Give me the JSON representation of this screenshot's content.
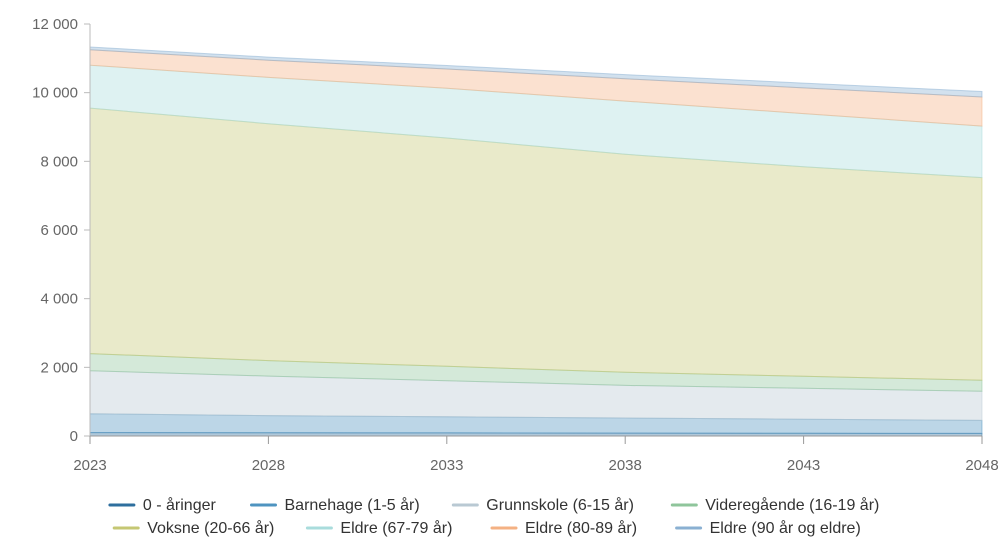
{
  "chart_data": {
    "type": "area",
    "stacked": true,
    "x": [
      2023,
      2028,
      2033,
      2038,
      2043,
      2048
    ],
    "ylim": [
      0,
      12000
    ],
    "yticks": [
      0,
      2000,
      4000,
      6000,
      8000,
      10000,
      12000
    ],
    "ytick_labels": [
      "0",
      "2 000",
      "4 000",
      "6 000",
      "8 000",
      "10 000",
      "12 000"
    ],
    "xtick_labels": [
      "2023",
      "2028",
      "2033",
      "2038",
      "2043",
      "2048"
    ],
    "grid": false,
    "legend_position": "bottom",
    "series": [
      {
        "name": "0 - åringer",
        "color": "#2e6f9e",
        "values": [
          100,
          95,
          90,
          85,
          80,
          75
        ]
      },
      {
        "name": "Barnehage (1-5 år)",
        "color": "#4f94c0",
        "values": [
          550,
          500,
          470,
          440,
          410,
          380
        ]
      },
      {
        "name": "Grunnskole (6-15 år)",
        "color": "#b9c9d3",
        "values": [
          1250,
          1150,
          1050,
          950,
          900,
          850
        ]
      },
      {
        "name": "Videregående (16-19 år)",
        "color": "#8fc59b",
        "values": [
          500,
          450,
          420,
          380,
          350,
          320
        ]
      },
      {
        "name": "Voksne (20-66 år)",
        "color": "#c5c773",
        "values": [
          7150,
          6900,
          6650,
          6350,
          6100,
          5900
        ]
      },
      {
        "name": "Eldre (67-79 år)",
        "color": "#a9dcdc",
        "values": [
          1250,
          1350,
          1450,
          1550,
          1550,
          1500
        ]
      },
      {
        "name": "Eldre (80-89 år)",
        "color": "#f4b183",
        "values": [
          450,
          500,
          560,
          650,
          750,
          850
        ]
      },
      {
        "name": "Eldre (90 år og eldre)",
        "color": "#8ab0d2",
        "values": [
          80,
          90,
          100,
          120,
          140,
          160
        ]
      }
    ]
  }
}
